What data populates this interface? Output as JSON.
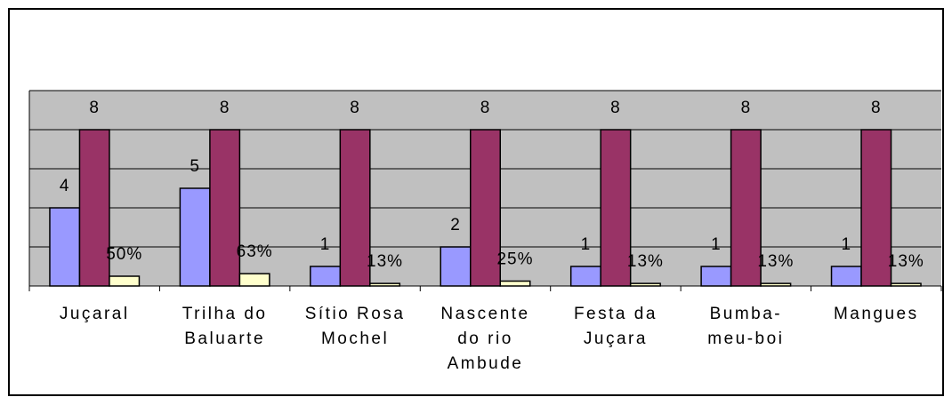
{
  "chart_data": {
    "type": "bar",
    "categories": [
      "Juçaral",
      "Trilha do Baluarte",
      "Sítio Rosa Mochel",
      "Nascente do rio Ambude",
      "Festa da Juçara",
      "Bumba-meu-boi",
      "Mangues"
    ],
    "series": [
      {
        "color": "#9999ff",
        "values": [
          4,
          5,
          1,
          2,
          1,
          1,
          1
        ]
      },
      {
        "color": "#993366",
        "values": [
          8,
          8,
          8,
          8,
          8,
          8,
          8
        ]
      },
      {
        "color": "#ffffcc",
        "values": [
          0.5,
          0.63,
          0.13,
          0.25,
          0.13,
          0.13,
          0.13
        ],
        "value_labels": [
          "50%",
          "63%",
          "13%",
          "25%",
          "13%",
          "13%",
          "13%"
        ]
      }
    ],
    "ylim": [
      0,
      10
    ],
    "yticks": [
      0,
      2,
      4,
      6,
      8,
      10
    ],
    "grid": true
  }
}
